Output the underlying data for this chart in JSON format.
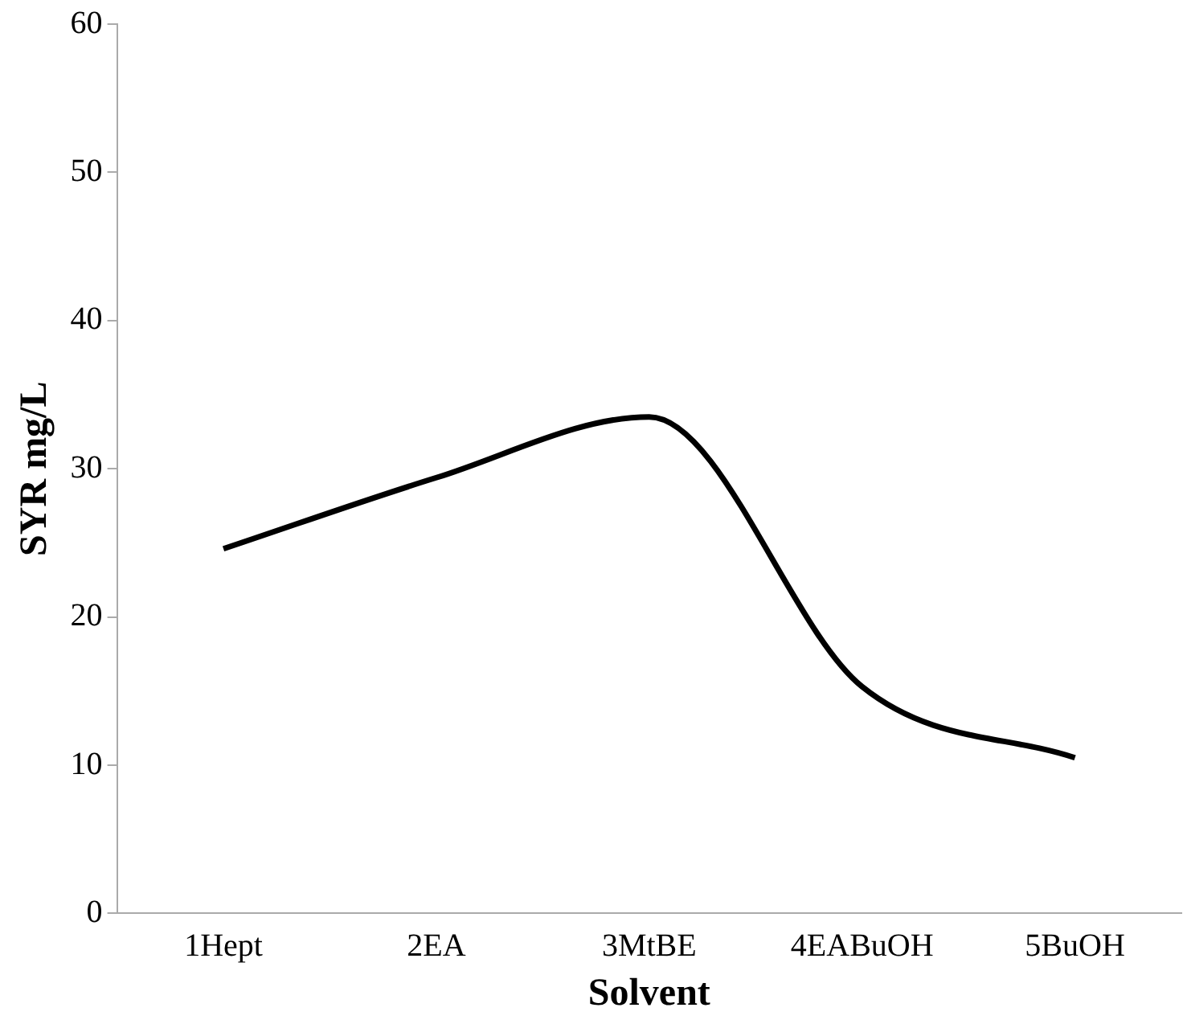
{
  "chart_data": {
    "type": "line",
    "xlabel": "Solvent",
    "ylabel": "SYR mg/L",
    "categories": [
      "1Hept",
      "2EA",
      "3MtBE",
      "4EABuOH",
      "5BuOH"
    ],
    "series": [
      {
        "color": "#000000",
        "values": [
          24.6,
          29.4,
          33.5,
          15.3,
          10.5
        ]
      }
    ],
    "ylim": [
      0,
      60
    ],
    "yticks": [
      0,
      10,
      20,
      30,
      40,
      50,
      60
    ],
    "grid": false,
    "legend": false,
    "marker": "none",
    "line_style": "solid"
  }
}
